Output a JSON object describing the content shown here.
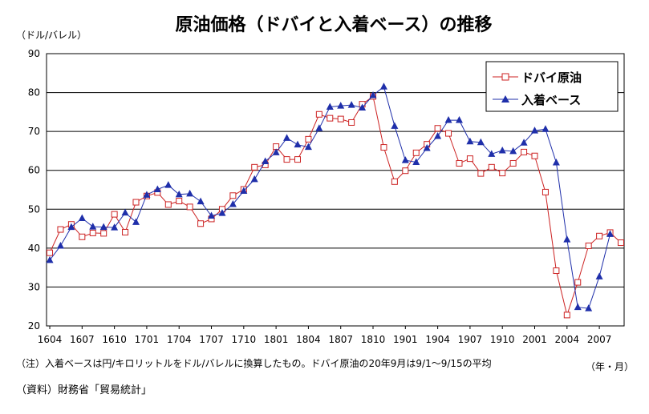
{
  "chart_data": {
    "type": "line",
    "title": "原油価格（ドバイと入着ベース）の推移",
    "y_unit": "（ドル/バレル）",
    "x_unit": "（年・月）",
    "ylim": [
      20,
      90
    ],
    "yticks": [
      20,
      30,
      40,
      50,
      60,
      70,
      80,
      90
    ],
    "grid": true,
    "legend_position": "top-right",
    "x_tick_labels": [
      "1604",
      "1607",
      "1610",
      "1701",
      "1704",
      "1707",
      "1710",
      "1801",
      "1804",
      "1807",
      "1810",
      "1901",
      "1904",
      "1907",
      "1910",
      "2001",
      "2004",
      "2007"
    ],
    "x_tick_months": [
      0,
      3,
      6,
      9,
      12,
      15,
      18,
      21,
      24,
      27,
      30,
      33,
      36,
      39,
      42,
      45,
      48,
      51
    ],
    "series": [
      {
        "name": "ドバイ原油",
        "color": "#cc2222",
        "marker": "square-open",
        "x_start_month": 0,
        "values": [
          38.8,
          44.8,
          46.1,
          42.9,
          43.9,
          43.8,
          48.7,
          44.1,
          51.8,
          53.4,
          54.3,
          51.2,
          52.1,
          50.6,
          46.3,
          47.5,
          50.0,
          53.5,
          55.1,
          60.8,
          61.4,
          66.1,
          62.8,
          62.8,
          68.0,
          74.4,
          73.4,
          73.2,
          72.3,
          77.0,
          79.0,
          65.9,
          57.1,
          59.9,
          64.5,
          66.7,
          70.8,
          69.5,
          61.8,
          63.0,
          59.2,
          60.8,
          59.3,
          61.8,
          64.7,
          63.7,
          54.4,
          34.2,
          22.8,
          31.2,
          40.6,
          43.1,
          44.0,
          41.4
        ]
      },
      {
        "name": "入着ベース",
        "color": "#1f2faa",
        "marker": "triangle-filled",
        "x_start_month": 0,
        "values": [
          36.9,
          40.6,
          45.4,
          47.7,
          45.5,
          45.4,
          45.3,
          49.1,
          46.7,
          53.7,
          55.1,
          56.2,
          53.8,
          54.0,
          52.0,
          48.3,
          49.0,
          51.3,
          54.7,
          57.7,
          62.3,
          64.6,
          68.3,
          66.6,
          66.0,
          70.8,
          76.3,
          76.6,
          76.8,
          76.1,
          79.3,
          81.5,
          71.4,
          62.6,
          62.1,
          65.7,
          68.8,
          72.9,
          72.9,
          67.4,
          67.2,
          64.2,
          65.1,
          64.9,
          67.1,
          70.2,
          70.6,
          62.0,
          42.2,
          24.8,
          24.5,
          32.7,
          43.6
        ]
      }
    ],
    "note": "（注）入着ベースは円/キロリットルをドル/バレルに換算したもの。ドバイ原油の20年9月は9/1～9/15の平均",
    "source": "（資料）財務省「貿易統計」"
  }
}
